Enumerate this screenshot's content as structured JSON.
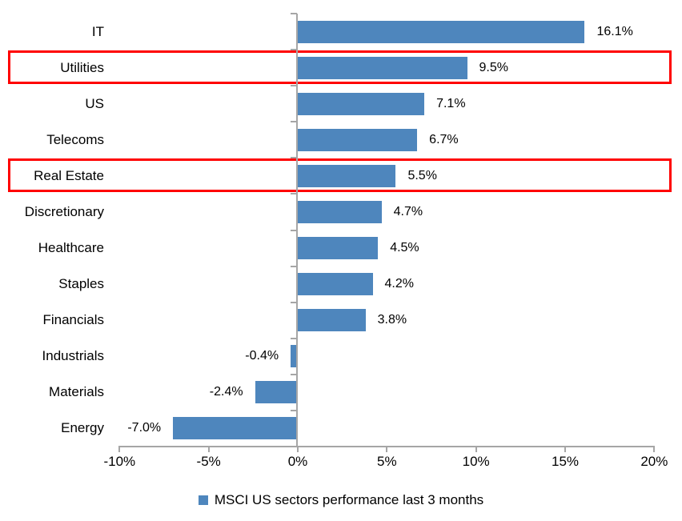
{
  "chart_data": {
    "type": "bar",
    "orientation": "horizontal",
    "title": "",
    "xlabel": "",
    "ylabel": "",
    "categories": [
      "IT",
      "Utilities",
      "US",
      "Telecoms",
      "Real Estate",
      "Discretionary",
      "Healthcare",
      "Staples",
      "Financials",
      "Industrials",
      "Materials",
      "Energy"
    ],
    "values": [
      16.1,
      9.5,
      7.1,
      6.7,
      5.5,
      4.7,
      4.5,
      4.2,
      3.8,
      -0.4,
      -2.4,
      -7.0
    ],
    "data_labels": [
      "16.1%",
      "9.5%",
      "7.1%",
      "6.7%",
      "5.5%",
      "4.7%",
      "4.5%",
      "4.2%",
      "3.8%",
      "-0.4%",
      "-2.4%",
      "-7.0%"
    ],
    "xlim": [
      -10,
      20
    ],
    "x_tick_values": [
      -10,
      -5,
      0,
      5,
      10,
      15,
      20
    ],
    "x_tick_labels": [
      "-10%",
      "-5%",
      "0%",
      "5%",
      "10%",
      "15%",
      "20%"
    ],
    "grid": "off",
    "legend_position": "bottom",
    "legend": "MSCI US sectors performance last 3 months",
    "bar_color": "#4e86bd",
    "axis_color": "#a6a6a6",
    "highlight_color": "#ff0000",
    "highlighted_categories": [
      "Utilities",
      "Real Estate"
    ],
    "highlighted_indices": [
      1,
      4
    ]
  }
}
